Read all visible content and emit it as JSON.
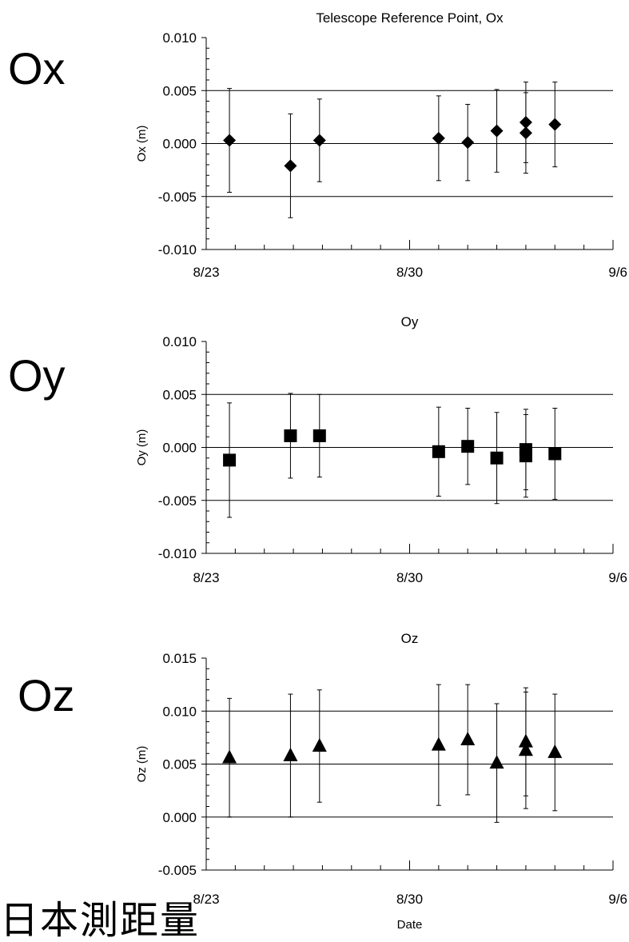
{
  "labels": {
    "ox": "Ox",
    "oy": "Oy",
    "oz": "Oz"
  },
  "footer": "日本測距量",
  "chart_data": [
    {
      "type": "scatter",
      "title": "Telescope Reference Point, Ox",
      "ylabel": "Ox (m)",
      "xlabel": "",
      "marker": "diamond",
      "x_ticks": [
        "8/23",
        "8/30",
        "9/6"
      ],
      "xlim": [
        "2000-08-23",
        "2000-09-06"
      ],
      "ylim": [
        -0.01,
        0.01
      ],
      "y_ticks": [
        "-0.010",
        "-0.005",
        "0.000",
        "0.005",
        "0.010"
      ],
      "gridlines_y": [
        -0.005,
        0.0,
        0.005
      ],
      "points": [
        {
          "x": 23.8,
          "y": 0.0003,
          "err": 0.0049
        },
        {
          "x": 25.9,
          "y": -0.0021,
          "err": 0.0049
        },
        {
          "x": 26.9,
          "y": 0.0003,
          "err": 0.0039
        },
        {
          "x": 31.0,
          "y": 0.0005,
          "err": 0.004
        },
        {
          "x": 32.0,
          "y": 0.0001,
          "err": 0.0036
        },
        {
          "x": 33.0,
          "y": 0.0012,
          "err": 0.0039
        },
        {
          "x": 34.0,
          "y": 0.002,
          "err": 0.0038
        },
        {
          "x": 34.0,
          "y": 0.001,
          "err": 0.0038
        },
        {
          "x": 35.0,
          "y": 0.0018,
          "err": 0.004
        }
      ]
    },
    {
      "type": "scatter",
      "title": "Oy",
      "ylabel": "Oy (m)",
      "xlabel": "",
      "marker": "square",
      "x_ticks": [
        "8/23",
        "8/30",
        "9/6"
      ],
      "xlim": [
        "2000-08-23",
        "2000-09-06"
      ],
      "ylim": [
        -0.01,
        0.01
      ],
      "y_ticks": [
        "-0.010",
        "-0.005",
        "0.000",
        "0.005",
        "0.010"
      ],
      "gridlines_y": [
        -0.005,
        0.0,
        0.005
      ],
      "points": [
        {
          "x": 23.8,
          "y": -0.0012,
          "err": 0.0054
        },
        {
          "x": 25.9,
          "y": 0.0011,
          "err": 0.004
        },
        {
          "x": 26.9,
          "y": 0.0011,
          "err": 0.0039
        },
        {
          "x": 31.0,
          "y": -0.0004,
          "err": 0.0042
        },
        {
          "x": 32.0,
          "y": 0.0001,
          "err": 0.0036
        },
        {
          "x": 33.0,
          "y": -0.001,
          "err": 0.0043
        },
        {
          "x": 34.0,
          "y": -0.0002,
          "err": 0.0038
        },
        {
          "x": 34.0,
          "y": -0.0008,
          "err": 0.0039
        },
        {
          "x": 35.0,
          "y": -0.0006,
          "err": 0.0043
        }
      ]
    },
    {
      "type": "scatter",
      "title": "Oz",
      "ylabel": "Oz (m)",
      "xlabel": "Date",
      "marker": "triangle",
      "x_ticks": [
        "8/23",
        "8/30",
        "9/6"
      ],
      "xlim": [
        "2000-08-23",
        "2000-09-06"
      ],
      "ylim": [
        -0.005,
        0.015
      ],
      "y_ticks": [
        "-0.005",
        "0.000",
        "0.005",
        "0.010",
        "0.015"
      ],
      "gridlines_y": [
        0.0,
        0.005,
        0.01
      ],
      "points": [
        {
          "x": 23.8,
          "y": 0.0056,
          "err": 0.0056
        },
        {
          "x": 25.9,
          "y": 0.0058,
          "err": 0.0058
        },
        {
          "x": 26.9,
          "y": 0.0067,
          "err": 0.0053
        },
        {
          "x": 31.0,
          "y": 0.0068,
          "err": 0.0057
        },
        {
          "x": 32.0,
          "y": 0.0073,
          "err": 0.0052
        },
        {
          "x": 33.0,
          "y": 0.0051,
          "err": 0.0056
        },
        {
          "x": 34.0,
          "y": 0.0071,
          "err": 0.0051
        },
        {
          "x": 34.0,
          "y": 0.0063,
          "err": 0.0055
        },
        {
          "x": 35.0,
          "y": 0.0061,
          "err": 0.0055
        }
      ]
    }
  ]
}
